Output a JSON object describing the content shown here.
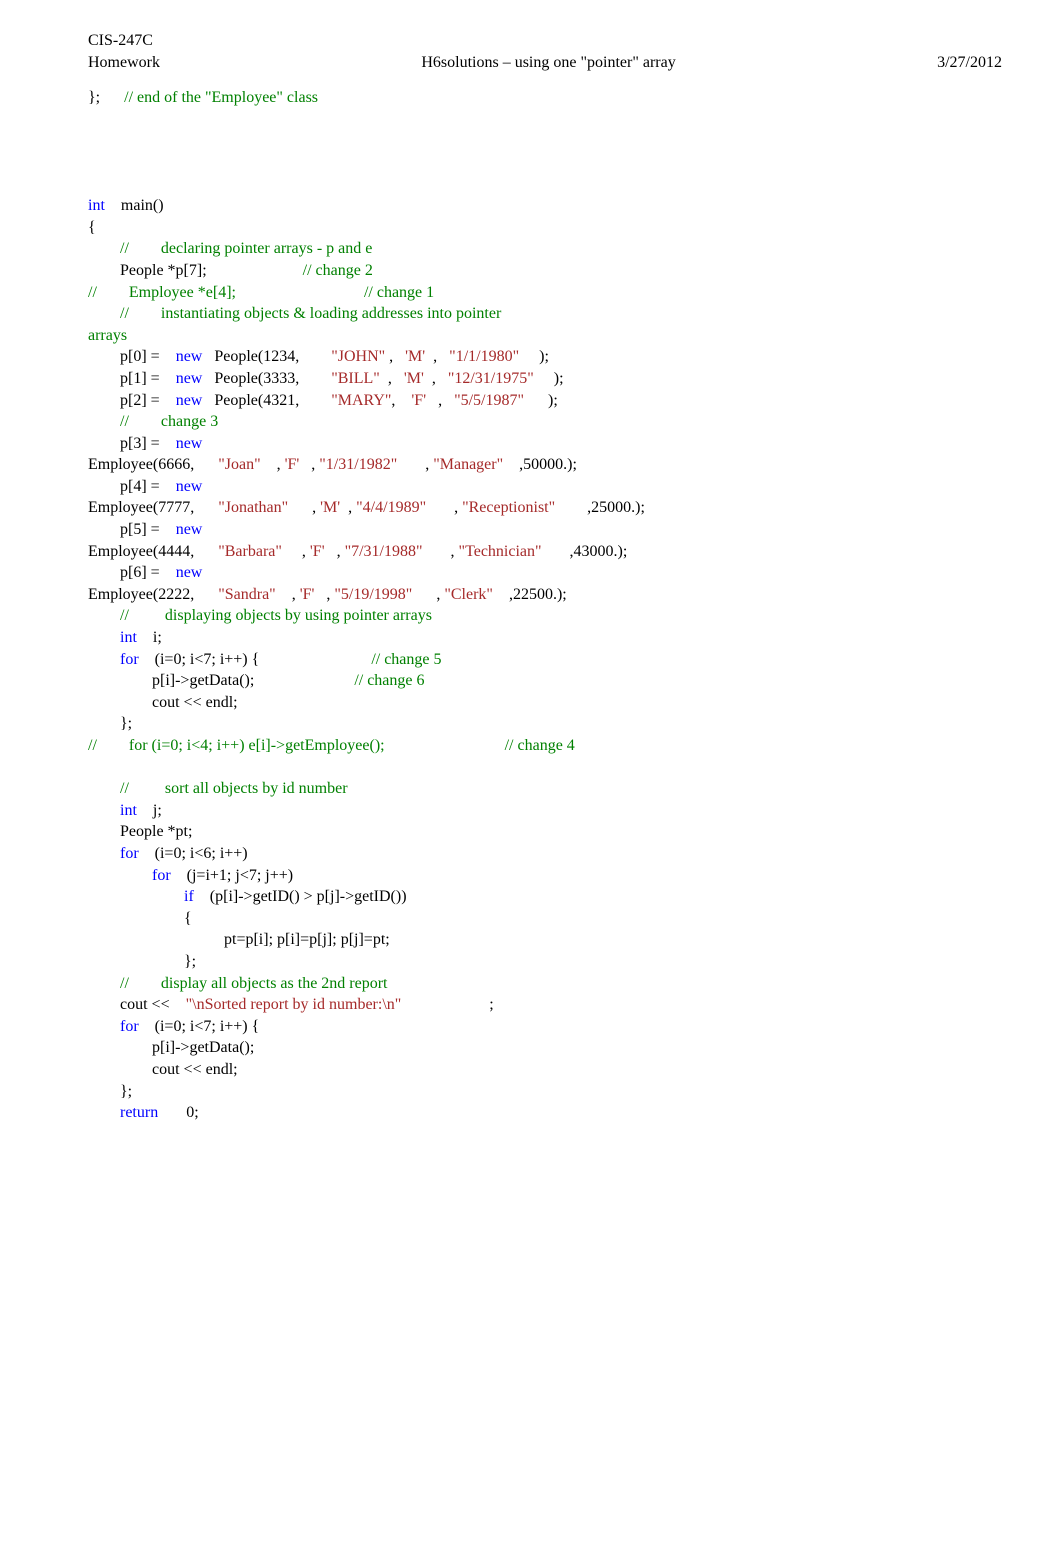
{
  "header": {
    "course": "CIS-247C",
    "label": "Homework",
    "title": "H6solutions – using one \"pointer\" array",
    "date": "3/27/2012"
  },
  "code": {
    "lines": [
      [
        {
          "c": "plain",
          "t": "};      "
        },
        {
          "c": "cm",
          "t": "// end of the \"Employee\" class"
        }
      ],
      [
        {
          "c": "plain",
          "t": ""
        }
      ],
      [
        {
          "c": "plain",
          "t": ""
        }
      ],
      [
        {
          "c": "plain",
          "t": ""
        }
      ],
      [
        {
          "c": "plain",
          "t": ""
        }
      ],
      [
        {
          "c": "kw",
          "t": "int"
        },
        {
          "c": "plain",
          "t": "    main()"
        }
      ],
      [
        {
          "c": "plain",
          "t": "{"
        }
      ],
      [
        {
          "c": "plain",
          "t": "        "
        },
        {
          "c": "cm",
          "t": "//        declaring pointer arrays - p and e"
        }
      ],
      [
        {
          "c": "plain",
          "t": "        People *p[7];                        "
        },
        {
          "c": "cm",
          "t": "// change 2"
        }
      ],
      [
        {
          "c": "cm",
          "t": "//        Employee *e[4];                                // change 1"
        }
      ],
      [
        {
          "c": "plain",
          "t": "        "
        },
        {
          "c": "cm",
          "t": "//        instantiating objects & loading addresses into pointer"
        }
      ],
      [
        {
          "c": "cm",
          "t": "arrays"
        }
      ],
      [
        {
          "c": "plain",
          "t": "        p[0] =    "
        },
        {
          "c": "kw",
          "t": "new"
        },
        {
          "c": "plain",
          "t": "   People(1234,        "
        },
        {
          "c": "str",
          "t": "\"JOHN\""
        },
        {
          "c": "plain",
          "t": " ,   "
        },
        {
          "c": "str",
          "t": "'M'"
        },
        {
          "c": "plain",
          "t": "  ,   "
        },
        {
          "c": "str",
          "t": "\"1/1/1980\""
        },
        {
          "c": "plain",
          "t": "     );"
        }
      ],
      [
        {
          "c": "plain",
          "t": "        p[1] =    "
        },
        {
          "c": "kw",
          "t": "new"
        },
        {
          "c": "plain",
          "t": "   People(3333,        "
        },
        {
          "c": "str",
          "t": "\"BILL\""
        },
        {
          "c": "plain",
          "t": "  ,   "
        },
        {
          "c": "str",
          "t": "'M'"
        },
        {
          "c": "plain",
          "t": "  ,   "
        },
        {
          "c": "str",
          "t": "\"12/31/1975\""
        },
        {
          "c": "plain",
          "t": "     );"
        }
      ],
      [
        {
          "c": "plain",
          "t": "        p[2] =    "
        },
        {
          "c": "kw",
          "t": "new"
        },
        {
          "c": "plain",
          "t": "   People(4321,        "
        },
        {
          "c": "str",
          "t": "\"MARY\""
        },
        {
          "c": "plain",
          "t": ",    "
        },
        {
          "c": "str",
          "t": "'F'"
        },
        {
          "c": "plain",
          "t": "   ,   "
        },
        {
          "c": "str",
          "t": "\"5/5/1987\""
        },
        {
          "c": "plain",
          "t": "      );"
        }
      ],
      [
        {
          "c": "plain",
          "t": "        "
        },
        {
          "c": "cm",
          "t": "//        change 3"
        }
      ],
      [
        {
          "c": "plain",
          "t": "        p[3] =    "
        },
        {
          "c": "kw",
          "t": "new"
        }
      ],
      [
        {
          "c": "plain",
          "t": "Employee(6666,      "
        },
        {
          "c": "str",
          "t": "\"Joan\""
        },
        {
          "c": "plain",
          "t": "    , "
        },
        {
          "c": "str",
          "t": "'F'"
        },
        {
          "c": "plain",
          "t": "   , "
        },
        {
          "c": "str",
          "t": "\"1/31/1982\""
        },
        {
          "c": "plain",
          "t": "       , "
        },
        {
          "c": "str",
          "t": "\"Manager\""
        },
        {
          "c": "plain",
          "t": "    ,50000.);"
        }
      ],
      [
        {
          "c": "plain",
          "t": "        p[4] =    "
        },
        {
          "c": "kw",
          "t": "new"
        }
      ],
      [
        {
          "c": "plain",
          "t": "Employee(7777,      "
        },
        {
          "c": "str",
          "t": "\"Jonathan\""
        },
        {
          "c": "plain",
          "t": "      , "
        },
        {
          "c": "str",
          "t": "'M'"
        },
        {
          "c": "plain",
          "t": "  , "
        },
        {
          "c": "str",
          "t": "\"4/4/1989\""
        },
        {
          "c": "plain",
          "t": "       , "
        },
        {
          "c": "str",
          "t": "\"Receptionist\""
        },
        {
          "c": "plain",
          "t": "        ,25000.);"
        }
      ],
      [
        {
          "c": "plain",
          "t": "        p[5] =    "
        },
        {
          "c": "kw",
          "t": "new"
        }
      ],
      [
        {
          "c": "plain",
          "t": "Employee(4444,      "
        },
        {
          "c": "str",
          "t": "\"Barbara\""
        },
        {
          "c": "plain",
          "t": "     , "
        },
        {
          "c": "str",
          "t": "'F'"
        },
        {
          "c": "plain",
          "t": "   , "
        },
        {
          "c": "str",
          "t": "\"7/31/1988\""
        },
        {
          "c": "plain",
          "t": "       , "
        },
        {
          "c": "str",
          "t": "\"Technician\""
        },
        {
          "c": "plain",
          "t": "       ,43000.);"
        }
      ],
      [
        {
          "c": "plain",
          "t": "        p[6] =    "
        },
        {
          "c": "kw",
          "t": "new"
        }
      ],
      [
        {
          "c": "plain",
          "t": "Employee(2222,      "
        },
        {
          "c": "str",
          "t": "\"Sandra\""
        },
        {
          "c": "plain",
          "t": "    , "
        },
        {
          "c": "str",
          "t": "'F'"
        },
        {
          "c": "plain",
          "t": "   , "
        },
        {
          "c": "str",
          "t": "\"5/19/1998\""
        },
        {
          "c": "plain",
          "t": "      , "
        },
        {
          "c": "str",
          "t": "\"Clerk\""
        },
        {
          "c": "plain",
          "t": "    ,22500.);"
        }
      ],
      [
        {
          "c": "plain",
          "t": "        "
        },
        {
          "c": "cm",
          "t": "//         displaying objects by using pointer arrays"
        }
      ],
      [
        {
          "c": "plain",
          "t": "        "
        },
        {
          "c": "kw",
          "t": "int"
        },
        {
          "c": "plain",
          "t": "    i;"
        }
      ],
      [
        {
          "c": "plain",
          "t": "        "
        },
        {
          "c": "kw",
          "t": "for"
        },
        {
          "c": "plain",
          "t": "    (i=0; i<7; i++) {                            "
        },
        {
          "c": "cm",
          "t": "// change 5"
        }
      ],
      [
        {
          "c": "plain",
          "t": "                p[i]->getData();                         "
        },
        {
          "c": "cm",
          "t": "// change 6"
        }
      ],
      [
        {
          "c": "plain",
          "t": "                cout << endl;"
        }
      ],
      [
        {
          "c": "plain",
          "t": "        };"
        }
      ],
      [
        {
          "c": "cm",
          "t": "//        for (i=0; i<4; i++) e[i]->getEmployee();                              // change 4"
        }
      ],
      [
        {
          "c": "plain",
          "t": ""
        }
      ],
      [
        {
          "c": "plain",
          "t": "        "
        },
        {
          "c": "cm",
          "t": "//         sort all objects by id number"
        }
      ],
      [
        {
          "c": "plain",
          "t": "        "
        },
        {
          "c": "kw",
          "t": "int"
        },
        {
          "c": "plain",
          "t": "    j;"
        }
      ],
      [
        {
          "c": "plain",
          "t": "        People *pt;"
        }
      ],
      [
        {
          "c": "plain",
          "t": "        "
        },
        {
          "c": "kw",
          "t": "for"
        },
        {
          "c": "plain",
          "t": "    (i=0; i<6; i++)"
        }
      ],
      [
        {
          "c": "plain",
          "t": "                "
        },
        {
          "c": "kw",
          "t": "for"
        },
        {
          "c": "plain",
          "t": "    (j=i+1; j<7; j++)"
        }
      ],
      [
        {
          "c": "plain",
          "t": "                        "
        },
        {
          "c": "kw",
          "t": "if"
        },
        {
          "c": "plain",
          "t": "    (p[i]->getID() > p[j]->getID())"
        }
      ],
      [
        {
          "c": "plain",
          "t": "                        {"
        }
      ],
      [
        {
          "c": "plain",
          "t": "                                  pt=p[i]; p[i]=p[j]; p[j]=pt;"
        }
      ],
      [
        {
          "c": "plain",
          "t": "                        };"
        }
      ],
      [
        {
          "c": "plain",
          "t": "        "
        },
        {
          "c": "cm",
          "t": "//        display all objects as the 2nd report"
        }
      ],
      [
        {
          "c": "plain",
          "t": "        cout <<    "
        },
        {
          "c": "str",
          "t": "\"\\nSorted report by id number:\\n\""
        },
        {
          "c": "plain",
          "t": "                      ;"
        }
      ],
      [
        {
          "c": "plain",
          "t": "        "
        },
        {
          "c": "kw",
          "t": "for"
        },
        {
          "c": "plain",
          "t": "    (i=0; i<7; i++) {"
        }
      ],
      [
        {
          "c": "plain",
          "t": "                p[i]->getData();"
        }
      ],
      [
        {
          "c": "plain",
          "t": "                cout << endl;"
        }
      ],
      [
        {
          "c": "plain",
          "t": "        };"
        }
      ],
      [
        {
          "c": "plain",
          "t": "        "
        },
        {
          "c": "kw",
          "t": "return"
        },
        {
          "c": "plain",
          "t": "       0;"
        }
      ]
    ]
  }
}
